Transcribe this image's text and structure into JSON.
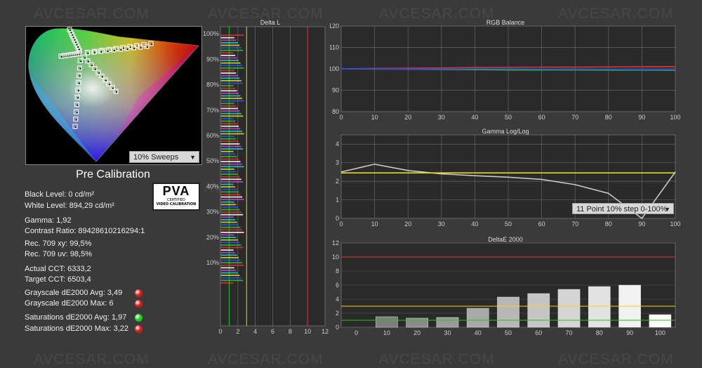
{
  "watermark": "AVCESAR.COM",
  "cie": {
    "dropdown_label": "10% Sweeps",
    "title": "Pre Calibration"
  },
  "badge": {
    "main": "PVA",
    "line1": "CERTIFIED",
    "line2": "VIDEO CALIBRATION"
  },
  "stats": [
    {
      "text": "Black Level: 0 cd/m²",
      "dot": null
    },
    {
      "text": "White Level: 894,29 cd/m²",
      "dot": null
    },
    {
      "text": "Gamma: 1,92",
      "dot": null
    },
    {
      "text": "Contrast Ratio: 89428610216294:1",
      "dot": null
    },
    {
      "text": "Rec. 709 xy: 99,5%",
      "dot": null
    },
    {
      "text": "Rec. 709 uv: 98,5%",
      "dot": null
    },
    {
      "text": "Actual CCT: 6333,2",
      "dot": null
    },
    {
      "text": "Target CCT: 6503,4",
      "dot": null
    },
    {
      "text": "Grayscale dE2000 Avg: 3,49",
      "dot": "#d21a1a"
    },
    {
      "text": "Grayscale dE2000 Max: 6",
      "dot": "#d21a1a"
    },
    {
      "text": "Saturations dE2000 Avg: 1,97",
      "dot": "#1ec81e"
    },
    {
      "text": "Saturations dE2000 Max: 3,22",
      "dot": "#d21a1a"
    }
  ],
  "gamma_dropdown": "11 Point 10% step 0-100%",
  "colors": {
    "red": "#e53030",
    "green": "#2fbf2f",
    "blue": "#2040ff",
    "yellow": "#e8d820",
    "gray": "#c8c8c8"
  },
  "chart_data": [
    {
      "type": "bar",
      "title": "Delta L",
      "orientation": "horizontal",
      "xlim": [
        0,
        12
      ],
      "xticks": [
        0,
        2,
        4,
        6,
        8,
        10,
        12
      ],
      "ytick_labels": [
        "10%",
        "20%",
        "30%",
        "40%",
        "50%",
        "60%",
        "70%",
        "80%",
        "90%",
        "100%"
      ],
      "reference_lines": [
        {
          "x": 1,
          "color": "green"
        },
        {
          "x": 3,
          "color": "yellow"
        },
        {
          "x": 10,
          "color": "red"
        }
      ],
      "bar_value_range": [
        1.5,
        2.8
      ]
    },
    {
      "type": "line",
      "title": "RGB Balance",
      "x": [
        0,
        10,
        20,
        30,
        40,
        50,
        60,
        70,
        80,
        90,
        100
      ],
      "xlim": [
        0,
        100
      ],
      "ylim": [
        80,
        120
      ],
      "yticks": [
        80,
        90,
        100,
        110,
        120
      ],
      "series": [
        {
          "color": "red",
          "values": [
            100,
            100.2,
            100.3,
            100.4,
            100.6,
            100.7,
            100.8,
            100.8,
            100.9,
            101,
            101
          ]
        },
        {
          "color": "green",
          "values": [
            100,
            99.9,
            99.8,
            99.7,
            99.6,
            99.5,
            99.5,
            99.5,
            99.4,
            99.4,
            99.3
          ]
        },
        {
          "color": "blue",
          "values": [
            100,
            100,
            99.9,
            99.9,
            100,
            100,
            99.9,
            99.8,
            99.8,
            99.7,
            99.7
          ]
        }
      ]
    },
    {
      "type": "line",
      "title": "Gamma Log/Log",
      "x": [
        0,
        10,
        20,
        30,
        40,
        50,
        60,
        70,
        80,
        90,
        100
      ],
      "xlim": [
        0,
        100
      ],
      "ylim": [
        0,
        4.5
      ],
      "yticks": [
        0,
        1,
        2,
        3,
        4
      ],
      "series": [
        {
          "color": "gray",
          "values": [
            2.5,
            2.92,
            2.58,
            2.4,
            2.3,
            2.22,
            2.1,
            1.82,
            1.35,
            0,
            2.5
          ]
        },
        {
          "color": "yellow",
          "values": [
            2.45,
            2.45,
            2.45,
            2.45,
            2.45,
            2.45,
            2.45,
            2.45,
            2.45,
            2.45,
            2.45
          ]
        }
      ]
    },
    {
      "type": "bar",
      "title": "DeltaE 2000",
      "categories": [
        "0",
        "10",
        "20",
        "30",
        "40",
        "50",
        "60",
        "70",
        "80",
        "90",
        "100"
      ],
      "values": [
        0,
        1.5,
        1.3,
        1.4,
        2.7,
        4.3,
        4.8,
        5.4,
        5.8,
        6.0,
        1.8
      ],
      "ylim": [
        0,
        12
      ],
      "yticks": [
        0,
        2,
        4,
        6,
        8,
        10,
        12
      ],
      "reference_lines": [
        {
          "y": 1,
          "color": "green"
        },
        {
          "y": 3,
          "color": "yellow"
        },
        {
          "y": 10,
          "color": "red"
        }
      ]
    }
  ]
}
